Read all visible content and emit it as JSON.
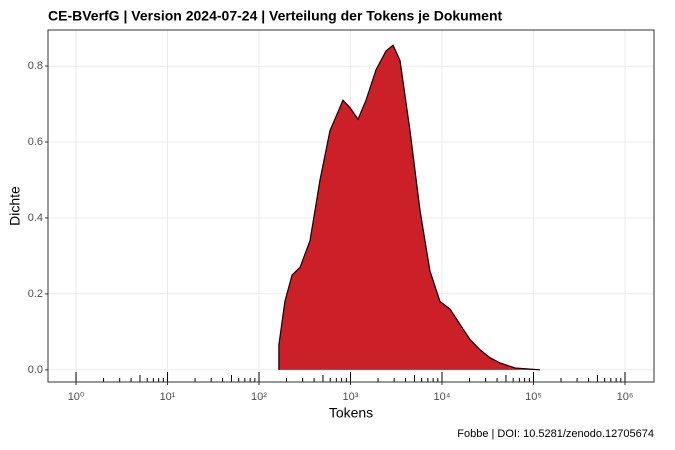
{
  "chart_data": {
    "type": "density",
    "title": "CE-BVerfG | Version 2024-07-24 | Verteilung der Tokens je Dokument",
    "x_label": "Tokens",
    "y_label": "Dichte",
    "caption": "Fobbe | DOI: 10.5281/zenodo.12705674",
    "x": [
      165,
      192,
      230,
      281,
      361,
      464,
      597,
      828,
      989,
      1208,
      1476,
      1900,
      2443,
      2912,
      3474,
      4467,
      5750,
      7396,
      9510,
      12230,
      15730,
      20230,
      26020,
      33500,
      43050,
      62800,
      117800
    ],
    "values": [
      0.066,
      0.18,
      0.25,
      0.27,
      0.34,
      0.5,
      0.63,
      0.71,
      0.69,
      0.66,
      0.71,
      0.79,
      0.84,
      0.855,
      0.815,
      0.63,
      0.42,
      0.26,
      0.18,
      0.16,
      0.12,
      0.08,
      0.053,
      0.032,
      0.018,
      0.005,
      0
    ],
    "color": "#cb2027",
    "xlog": true,
    "xlim": [
      0.494,
      2075000
    ],
    "ylim": [
      -0.032,
      0.895
    ],
    "xticks": [
      {
        "value": 1,
        "label": "10⁰"
      },
      {
        "value": 10,
        "label": "10¹"
      },
      {
        "value": 100,
        "label": "10²"
      },
      {
        "value": 1000,
        "label": "10³"
      },
      {
        "value": 10000,
        "label": "10⁴"
      },
      {
        "value": 100000,
        "label": "10⁵"
      },
      {
        "value": 1000000,
        "label": "10⁶"
      }
    ],
    "xminorticks": [
      2,
      3,
      4,
      5,
      6,
      7,
      8,
      9,
      20,
      30,
      40,
      50,
      60,
      70,
      80,
      90,
      200,
      300,
      400,
      500,
      600,
      700,
      800,
      900,
      2000,
      3000,
      4000,
      5000,
      6000,
      7000,
      8000,
      9000,
      20000,
      30000,
      40000,
      50000,
      60000,
      70000,
      80000,
      90000,
      200000,
      300000,
      400000,
      500000,
      600000,
      700000,
      800000,
      900000
    ],
    "yticks": [
      {
        "value": 0,
        "label": "0.0"
      },
      0.2,
      0.4,
      0.6,
      0.8
    ],
    "grid": true
  }
}
